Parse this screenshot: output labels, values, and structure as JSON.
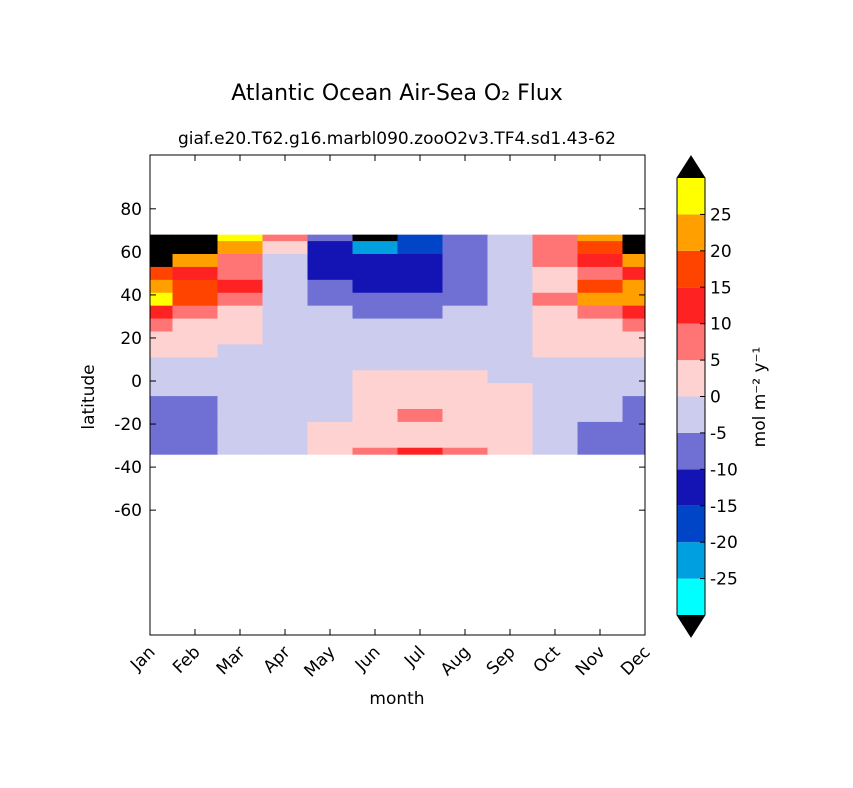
{
  "chart_data": {
    "type": "contour",
    "title": "Atlantic Ocean Air-Sea O₂ Flux",
    "subtitle": "giaf.e20.T62.g16.marbl090.zooO2v3.TF4.sd1.43-62",
    "x_label": "month",
    "y_label": "latitude",
    "colorbar_label": "mol m⁻² y⁻¹",
    "categories": [
      "Jan",
      "Feb",
      "Mar",
      "Apr",
      "May",
      "Jun",
      "Jul",
      "Aug",
      "Sep",
      "Oct",
      "Nov",
      "Dec"
    ],
    "y": [
      68,
      62,
      56,
      50,
      44,
      38,
      32,
      26,
      20,
      14,
      8,
      2,
      -4,
      -10,
      -16,
      -22,
      -28,
      -34
    ],
    "z": [
      [
        35,
        35,
        27,
        5,
        -10,
        -32,
        -20,
        -7,
        -3,
        7,
        20,
        35
      ],
      [
        35,
        32,
        20,
        2,
        -12,
        -22,
        -17,
        -8,
        -3,
        8,
        18,
        32
      ],
      [
        30,
        20,
        8,
        -3,
        -12,
        -15,
        -13,
        -8,
        -3,
        5,
        12,
        22
      ],
      [
        18,
        12,
        5,
        -5,
        -12,
        -14,
        -13,
        -8,
        -3,
        2,
        8,
        14
      ],
      [
        22,
        17,
        12,
        -2,
        -10,
        -12,
        -13,
        -7,
        -3,
        3,
        17,
        22
      ],
      [
        27,
        18,
        8,
        -3,
        -7,
        -7,
        -8,
        -6,
        -2,
        7,
        20,
        24
      ],
      [
        12,
        8,
        3,
        -2,
        -4,
        -6,
        -6,
        -4,
        -1,
        2,
        8,
        12
      ],
      [
        6,
        4,
        2,
        -1,
        -3,
        -3,
        -3,
        -3,
        -1,
        2,
        4,
        5
      ],
      [
        3,
        3,
        1,
        -1,
        -2,
        -2,
        -2,
        -2,
        -1,
        1,
        3,
        3
      ],
      [
        2,
        1,
        -1,
        -2,
        -2,
        -2,
        -2,
        -2,
        -2,
        1,
        2,
        2
      ],
      [
        -1,
        -1,
        -2,
        -2,
        -2,
        -2,
        -2,
        -2,
        -2,
        -1,
        -1,
        -1
      ],
      [
        -2,
        -2,
        -2,
        -2,
        -2,
        2,
        2,
        2,
        -2,
        -2,
        -2,
        -2
      ],
      [
        -4,
        -3,
        -3,
        -2,
        -1,
        2,
        3,
        3,
        1,
        -2,
        -3,
        -4
      ],
      [
        -6,
        -6,
        -3,
        -2,
        -1,
        2,
        3,
        3,
        1,
        -2,
        -4,
        -6
      ],
      [
        -6,
        -6,
        -3,
        -2,
        -1,
        2,
        5,
        4,
        1,
        -2,
        -5,
        -6
      ],
      [
        -7,
        -6,
        -4,
        -2,
        1,
        2,
        4,
        3,
        1,
        -3,
        -6,
        -7
      ],
      [
        -7,
        -6,
        -4,
        -2,
        1,
        3,
        4,
        3,
        1,
        -3,
        -6,
        -7
      ],
      [
        -7,
        -6,
        -4,
        -2,
        2,
        6,
        11,
        7,
        2,
        -3,
        -6,
        -7
      ]
    ],
    "ylim": [
      -118,
      105
    ],
    "yticks": [
      -60,
      -40,
      -20,
      0,
      20,
      40,
      60,
      80
    ],
    "levels": [
      -30,
      -25,
      -20,
      -15,
      -10,
      -5,
      0,
      5,
      10,
      15,
      20,
      25,
      30
    ],
    "level_colors": [
      "#00ffff",
      "#00a0e0",
      "#0044c8",
      "#1414b4",
      "#7070d4",
      "#ccccee",
      "#ffd2d2",
      "#ff7474",
      "#ff2222",
      "#ff4400",
      "#ffa000",
      "#ffff00"
    ],
    "over_color": "#000000",
    "under_color": "#000000",
    "colorbar_ticks": [
      -25,
      -20,
      -15,
      -10,
      -5,
      0,
      5,
      10,
      15,
      20,
      25
    ]
  }
}
